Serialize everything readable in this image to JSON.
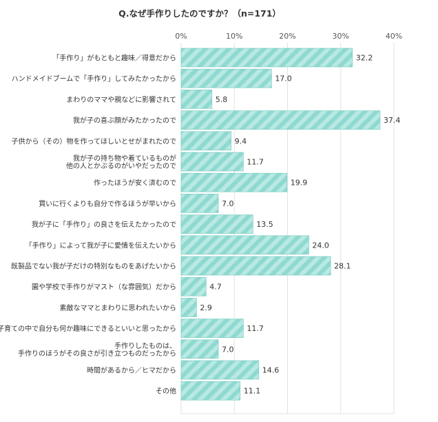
{
  "chart_data": {
    "type": "bar",
    "orientation": "horizontal",
    "title": "Q.なぜ手作りしたのですか？（n=171）",
    "xlabel": "",
    "ylabel": "",
    "xlim": [
      0,
      40
    ],
    "ticks": [
      "0%",
      "10%",
      "20%",
      "30%",
      "40%"
    ],
    "tick_values": [
      0,
      10,
      20,
      30,
      40
    ],
    "grid": true,
    "legend": "none",
    "colors": {
      "bar_fill": "#8fd9d0",
      "bar_stripe": "#b8e9e3",
      "bar_stroke": "#6fc8bd",
      "grid": "#e2e2e2"
    },
    "categories": [
      "「手作り」がもともと趣味／得意だから",
      "ハンドメイドブームで「手作り」してみたかったから",
      "まわりのママや親などに影響されて",
      "我が子の喜ぶ顔がみたかったので",
      "子供から（その）物を作ってほしいとせがまれたので",
      "我が子の持ち物や着ているものが\n他の人とかぶるのがいやだったので",
      "作ったほうが安く済むので",
      "買いに行くよりも自分で作るほうが早いから",
      "我が子に「手作り」の良さを伝えたかったので",
      "「手作り」によって我が子に愛情を伝えたいから",
      "既製品でない我が子だけの特別なものをあげたいから",
      "園や学校で手作りがマスト（な雰囲気）だから",
      "素敵なママとまわりに思われたいから",
      "子育ての中で自分も何か趣味にできるといいと思ったから",
      "手作りしたものは、\n手作りのほうがその良さが引き立つものだったから",
      "時間があるから／ヒマだから",
      "その他"
    ],
    "values": [
      32.2,
      17.0,
      5.8,
      37.4,
      9.4,
      11.7,
      19.9,
      7.0,
      13.5,
      24.0,
      28.1,
      4.7,
      2.9,
      11.7,
      7.0,
      14.6,
      11.1
    ],
    "value_labels": [
      "32.2",
      "17.0",
      "5.8",
      "37.4",
      "9.4",
      "11.7",
      "19.9",
      "7.0",
      "13.5",
      "24.0",
      "28.1",
      "4.7",
      "2.9",
      "11.7",
      "7.0",
      "14.6",
      "11.1"
    ]
  }
}
